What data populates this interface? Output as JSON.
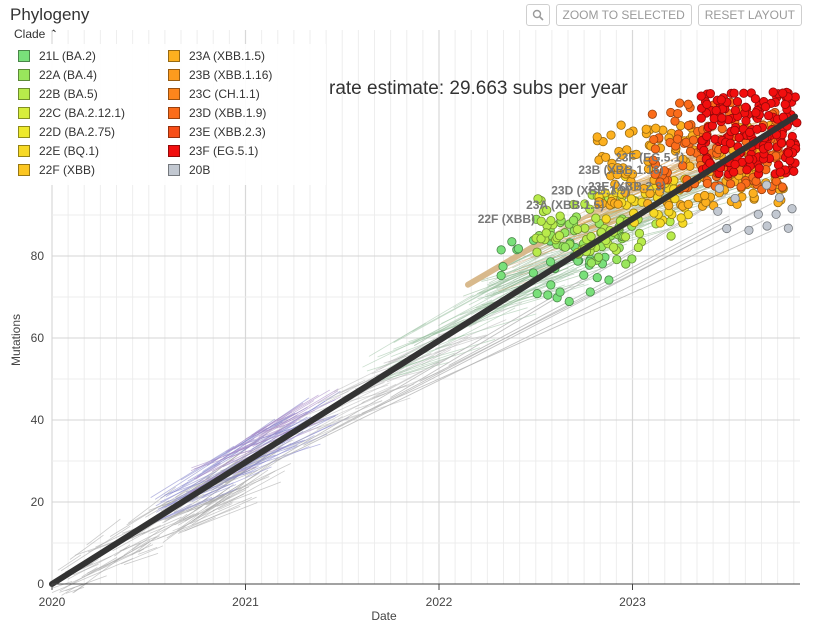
{
  "header": {
    "title": "Phylogeny",
    "zoom_icon": "zoom-icon",
    "zoom_label": "ZOOM TO SELECTED",
    "reset_label": "RESET LAYOUT"
  },
  "legend": {
    "title": "Clade",
    "toggle_icon": "chevron-up-icon",
    "items": [
      {
        "label": "21L (BA.2)",
        "color": "#79E07A"
      },
      {
        "label": "22A (BA.4)",
        "color": "#99E65C"
      },
      {
        "label": "22B (BA.5)",
        "color": "#B8EB4B"
      },
      {
        "label": "22C (BA.2.12.1)",
        "color": "#D8EE3B"
      },
      {
        "label": "22D (BA.2.75)",
        "color": "#EEE92C"
      },
      {
        "label": "22E (BQ.1)",
        "color": "#F7D925"
      },
      {
        "label": "22F (XBB)",
        "color": "#FBC621"
      },
      {
        "label": "23A (XBB.1.5)",
        "color": "#FCB01F"
      },
      {
        "label": "23B (XBB.1.16)",
        "color": "#FD9B1E"
      },
      {
        "label": "23C (CH.1.1)",
        "color": "#FD851C"
      },
      {
        "label": "23D (XBB.1.9)",
        "color": "#FB6C1A"
      },
      {
        "label": "23E (XBB.2.3)",
        "color": "#F74E17"
      },
      {
        "label": "23F (EG.5.1)",
        "color": "#F20F0F"
      },
      {
        "label": "20B",
        "color": "#C2C8D1"
      }
    ]
  },
  "annotation": "rate estimate: 29.663 subs per year",
  "chart_data": {
    "type": "scatter",
    "xlabel": "Date",
    "ylabel": "Mutations",
    "x_ticks": [
      "2020",
      "2021",
      "2022",
      "2023"
    ],
    "y_ticks": [
      0,
      20,
      40,
      60,
      80
    ],
    "xlim": [
      2020.0,
      2023.85
    ],
    "ylim": [
      0,
      98
    ],
    "grid": true,
    "regression": {
      "x0": 2020.0,
      "y0": 0,
      "x1": 2023.84,
      "y1": 114,
      "slope": 29.663
    },
    "clade_labels": [
      {
        "label": "22F (XBB)",
        "x": 2022.2,
        "y": 88,
        "color": "#FBC621"
      },
      {
        "label": "23A (XBB.1.5)",
        "x": 2022.45,
        "y": 91.5,
        "color": "#FCB01F"
      },
      {
        "label": "23D (XBB.1.9)",
        "x": 2022.58,
        "y": 95,
        "color": "#FB6C1A"
      },
      {
        "label": "23E (XBB.2.3)",
        "x": 2022.77,
        "y": 96,
        "color": "#F74E17"
      },
      {
        "label": "23B (XBB.1.16)",
        "x": 2022.72,
        "y": 100,
        "color": "#FD9B1E"
      },
      {
        "label": "23F (EG.5.1)",
        "x": 2022.91,
        "y": 103,
        "color": "#F20F0F"
      }
    ],
    "tip_clusters": [
      {
        "clade": "21L (BA.2)",
        "color": "#79E07A",
        "x": [
          2022.3,
          2022.9
        ],
        "y": [
          68,
          84
        ],
        "n": 35
      },
      {
        "clade": "22A (BA.4)",
        "color": "#99E65C",
        "x": [
          2022.5,
          2023.0
        ],
        "y": [
          78,
          90
        ],
        "n": 40
      },
      {
        "clade": "22B (BA.5)",
        "color": "#B8EB4B",
        "x": [
          2022.5,
          2023.2
        ],
        "y": [
          80,
          95
        ],
        "n": 60
      },
      {
        "clade": "22E (BQ.1)",
        "color": "#F7D925",
        "x": [
          2022.8,
          2023.3
        ],
        "y": [
          88,
          100
        ],
        "n": 40
      },
      {
        "clade": "23A (XBB.1.5)",
        "color": "#FCB01F",
        "x": [
          2022.8,
          2023.8
        ],
        "y": [
          92,
          112
        ],
        "n": 150
      },
      {
        "clade": "23D (XBB.1.9)",
        "color": "#FB6C1A",
        "x": [
          2023.1,
          2023.8
        ],
        "y": [
          96,
          118
        ],
        "n": 120
      },
      {
        "clade": "23F (EG.5.1)",
        "color": "#F20F0F",
        "x": [
          2023.35,
          2023.85
        ],
        "y": [
          100,
          120
        ],
        "n": 180
      },
      {
        "clade": "20B",
        "color": "#C2C8D1",
        "x": [
          2023.4,
          2023.85
        ],
        "y": [
          86,
          98
        ],
        "n": 12
      }
    ]
  }
}
